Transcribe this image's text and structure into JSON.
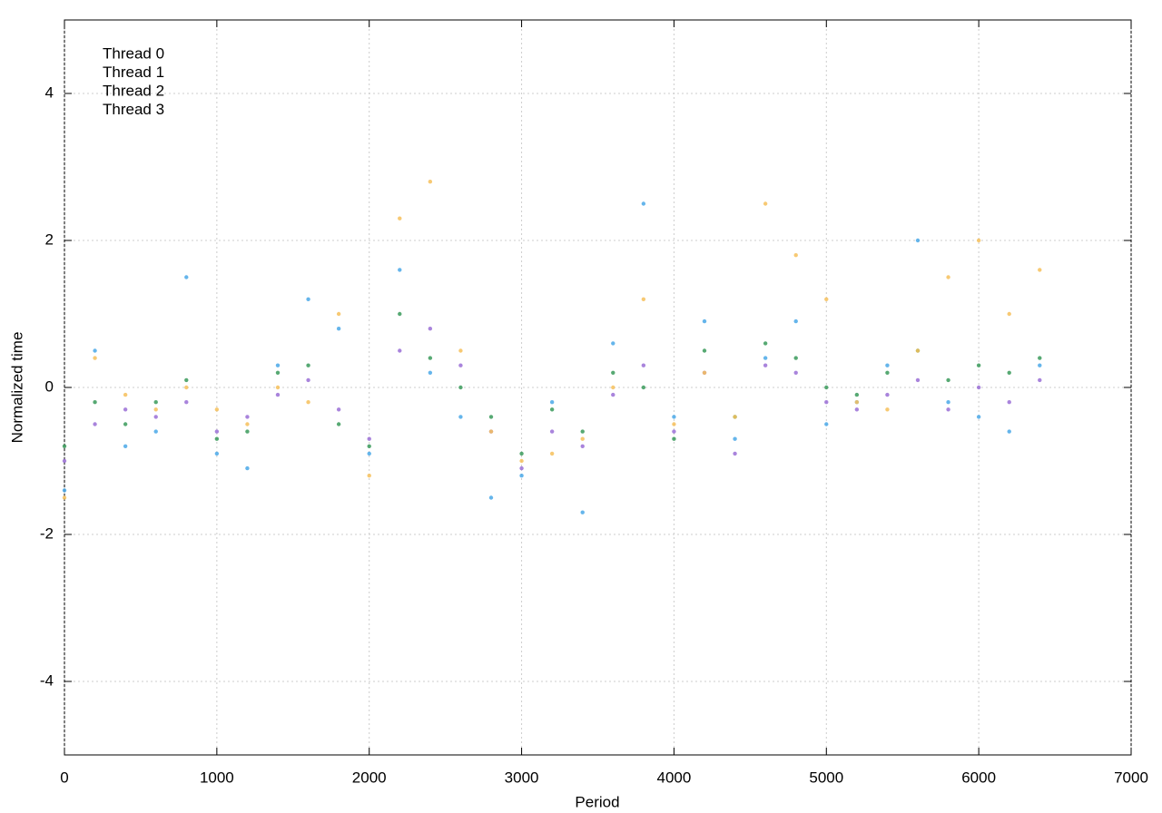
{
  "chart_data": {
    "type": "scatter",
    "x_label": "Period",
    "y_label": "Normalized time",
    "xlim": [
      0,
      7000
    ],
    "xticks": [
      0,
      1000,
      2000,
      3000,
      4000,
      5000,
      6000,
      7000
    ],
    "ylim": [
      -5,
      5
    ],
    "yticks": [
      -4,
      -2,
      0,
      2,
      4
    ],
    "grid": true,
    "legend": "top-left",
    "x": [
      0,
      200,
      400,
      600,
      800,
      1000,
      1200,
      1400,
      1600,
      1800,
      2000,
      2200,
      2400,
      2600,
      2800,
      3000,
      3200,
      3400,
      3600,
      3800,
      4000,
      4200,
      4400,
      4600,
      4800,
      5000,
      5200,
      5400,
      5600,
      5800,
      6000,
      6200,
      6400
    ],
    "series": [
      {
        "name": "Thread 0",
        "color": "#9a6fd6",
        "values": [
          -1.0,
          -0.5,
          -0.3,
          -0.4,
          -0.2,
          -0.6,
          -0.4,
          -0.1,
          0.1,
          -0.3,
          -0.7,
          0.5,
          0.8,
          0.3,
          -0.6,
          -1.1,
          -0.6,
          -0.8,
          -0.1,
          0.3,
          -0.6,
          0.2,
          -0.9,
          0.3,
          0.2,
          -0.2,
          -0.3,
          -0.1,
          0.1,
          -0.3,
          0.0,
          -0.2,
          0.1
        ]
      },
      {
        "name": "Thread 1",
        "color": "#3a9a5a",
        "values": [
          -0.8,
          -0.2,
          -0.5,
          -0.2,
          0.1,
          -0.7,
          -0.6,
          0.2,
          0.3,
          -0.5,
          -0.8,
          1.0,
          0.4,
          0.0,
          -0.4,
          -0.9,
          -0.3,
          -0.6,
          0.2,
          0.0,
          -0.7,
          0.5,
          -0.4,
          0.6,
          0.4,
          0.0,
          -0.1,
          0.2,
          0.5,
          0.1,
          0.3,
          0.2,
          0.4
        ]
      },
      {
        "name": "Thread 2",
        "color": "#4aa8e8",
        "values": [
          -1.4,
          0.5,
          -0.8,
          -0.6,
          1.5,
          -0.9,
          -1.1,
          0.3,
          1.2,
          0.8,
          -0.9,
          1.6,
          0.2,
          -0.4,
          -1.5,
          -1.2,
          -0.2,
          -1.7,
          0.6,
          2.5,
          -0.4,
          0.9,
          -0.7,
          0.4,
          0.9,
          -0.5,
          -0.2,
          0.3,
          2.0,
          -0.2,
          -0.4,
          -0.6,
          0.3
        ]
      },
      {
        "name": "Thread 3",
        "color": "#f6bf5a",
        "values": [
          -1.5,
          0.4,
          -0.1,
          -0.3,
          0.0,
          -0.3,
          -0.5,
          0.0,
          -0.2,
          1.0,
          -1.2,
          2.3,
          2.8,
          0.5,
          -0.6,
          -1.0,
          -0.9,
          -0.7,
          0.0,
          1.2,
          -0.5,
          0.2,
          -0.4,
          2.5,
          1.8,
          1.2,
          -0.2,
          -0.3,
          0.5,
          1.5,
          2.0,
          1.0,
          1.6
        ]
      }
    ]
  }
}
